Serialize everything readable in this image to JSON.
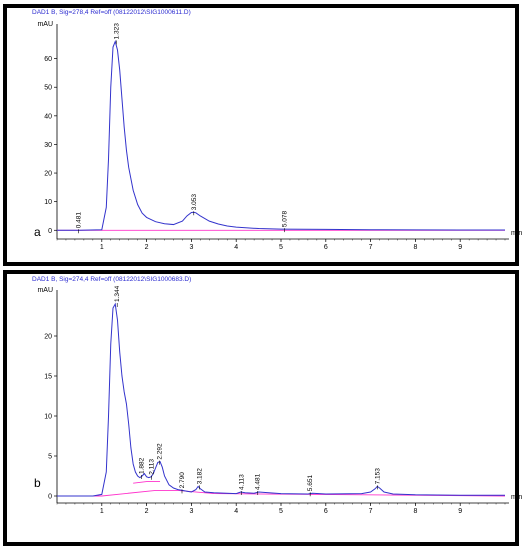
{
  "chart_data": [
    {
      "type": "line",
      "title": "DAD1 B, Sig=278,4 Ref=off (08122012\\SIG1000611.D)",
      "panel_label": "a",
      "ylabel": "mAU",
      "xlabel": "min",
      "xlim": [
        0,
        10
      ],
      "ylim": [
        -2,
        70
      ],
      "xticks": [
        1,
        2,
        3,
        4,
        5,
        6,
        7,
        8,
        9
      ],
      "yticks": [
        0,
        10,
        20,
        30,
        40,
        50,
        60
      ],
      "trace_color": "#3333cc",
      "baseline_color": "#ff33cc",
      "series": [
        {
          "x": [
            0.0,
            0.5,
            1.0,
            1.1,
            1.15,
            1.2,
            1.25,
            1.3,
            1.35,
            1.4,
            1.45,
            1.5,
            1.55,
            1.6,
            1.7,
            1.8,
            1.9,
            2.0,
            2.2,
            2.4,
            2.6,
            2.8,
            2.9,
            3.0,
            3.05,
            3.1,
            3.2,
            3.4,
            3.6,
            3.8,
            4.0,
            4.5,
            5.0,
            6.0,
            7.0,
            8.0,
            9.0,
            10.0
          ],
          "y": [
            0,
            0,
            0.2,
            8,
            25,
            50,
            64,
            66,
            63,
            56,
            46,
            36,
            28,
            22,
            14,
            9,
            6,
            4.5,
            3,
            2.3,
            2,
            3.2,
            5,
            6.2,
            6.3,
            6.1,
            5,
            3.2,
            2.2,
            1.5,
            1.1,
            0.6,
            0.4,
            0.3,
            0.2,
            0.15,
            0.1,
            0.1
          ]
        }
      ],
      "baseline_segments": [
        [
          [
            0.0,
            0.0
          ],
          [
            10.0,
            0.0
          ]
        ]
      ],
      "peak_labels": [
        {
          "x": 0.481,
          "y": 0,
          "label": "0.481"
        },
        {
          "x": 1.323,
          "y": 66,
          "label": "1.323"
        },
        {
          "x": 3.053,
          "y": 6.3,
          "label": "3.053"
        },
        {
          "x": 5.078,
          "y": 0.4,
          "label": "5.078"
        }
      ]
    },
    {
      "type": "line",
      "title": "DAD1 B, Sig=274,4 Ref=off (08122012\\SIG1000683.D)",
      "panel_label": "b",
      "ylabel": "mAU",
      "xlabel": "min",
      "xlim": [
        0,
        10
      ],
      "ylim": [
        -0.5,
        25
      ],
      "xticks": [
        1,
        2,
        3,
        4,
        5,
        6,
        7,
        8,
        9
      ],
      "yticks": [
        0,
        5,
        10,
        15,
        20
      ],
      "trace_color": "#3333cc",
      "baseline_color": "#ff33cc",
      "series": [
        {
          "x": [
            0.0,
            0.8,
            1.0,
            1.1,
            1.15,
            1.2,
            1.25,
            1.3,
            1.35,
            1.4,
            1.45,
            1.5,
            1.55,
            1.6,
            1.65,
            1.7,
            1.75,
            1.8,
            1.85,
            1.9,
            1.95,
            2.0,
            2.05,
            2.1,
            2.15,
            2.2,
            2.25,
            2.3,
            2.35,
            2.4,
            2.5,
            2.6,
            2.7,
            2.8,
            2.9,
            3.0,
            3.1,
            3.15,
            3.2,
            3.3,
            3.5,
            4.0,
            4.1,
            4.2,
            4.4,
            4.5,
            5.0,
            5.6,
            5.7,
            6.0,
            6.8,
            7.0,
            7.1,
            7.15,
            7.2,
            7.3,
            7.5,
            8.0,
            9.0,
            10.0
          ],
          "y": [
            0,
            0,
            0.2,
            3,
            10,
            19,
            23.5,
            24,
            22,
            18,
            15,
            13,
            11.5,
            9,
            6,
            4,
            3,
            2.5,
            2.3,
            2.5,
            2.8,
            2.4,
            2.3,
            2.4,
            2.8,
            3.5,
            4.2,
            4.3,
            3.6,
            2.5,
            1.4,
            1.0,
            0.8,
            0.7,
            0.6,
            0.5,
            0.8,
            1.2,
            0.9,
            0.5,
            0.4,
            0.3,
            0.5,
            0.4,
            0.35,
            0.5,
            0.3,
            0.25,
            0.35,
            0.25,
            0.3,
            0.5,
            0.9,
            1.2,
            1.0,
            0.5,
            0.25,
            0.15,
            0.1,
            0.1
          ]
        }
      ],
      "baseline_segments": [
        [
          [
            0.0,
            0.0
          ],
          [
            1.0,
            0.0
          ],
          [
            2.2,
            0.7
          ],
          [
            2.7,
            0.7
          ],
          [
            3.5,
            0.3
          ],
          [
            10.0,
            0.0
          ]
        ],
        [
          [
            1.7,
            1.6
          ],
          [
            2.0,
            1.8
          ],
          [
            2.3,
            1.8
          ]
        ]
      ],
      "peak_labels": [
        {
          "x": 1.344,
          "y": 24,
          "label": "1.344"
        },
        {
          "x": 1.882,
          "y": 2.5,
          "label": "1.882"
        },
        {
          "x": 2.113,
          "y": 2.4,
          "label": "2.113"
        },
        {
          "x": 2.292,
          "y": 4.3,
          "label": "2.292"
        },
        {
          "x": 2.79,
          "y": 0.7,
          "label": "2.790"
        },
        {
          "x": 3.182,
          "y": 1.2,
          "label": "3.182"
        },
        {
          "x": 4.113,
          "y": 0.5,
          "label": "4.113"
        },
        {
          "x": 4.481,
          "y": 0.5,
          "label": "4.481"
        },
        {
          "x": 5.651,
          "y": 0.35,
          "label": "5.651"
        },
        {
          "x": 7.153,
          "y": 1.2,
          "label": "7.153"
        }
      ]
    }
  ]
}
